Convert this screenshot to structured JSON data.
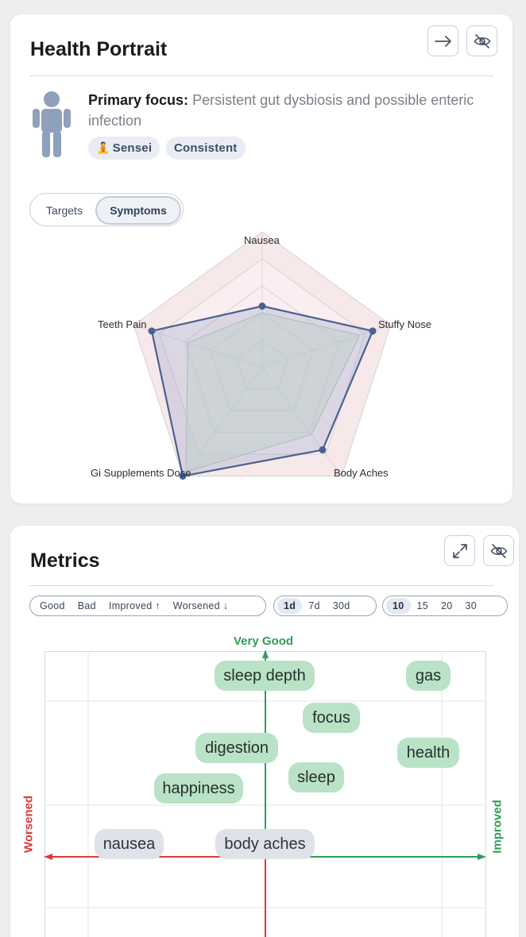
{
  "health_portrait": {
    "title": "Health Portrait",
    "buttons": {
      "open_icon": "arrow-right-icon",
      "hide_icon": "eye-off-icon"
    },
    "primary_focus_label": "Primary focus:",
    "primary_focus_text": "Persistent gut dysbiosis and possible enteric infection",
    "badges": [
      {
        "emoji": "🧘",
        "label": "Sensei"
      },
      {
        "label": "Consistent"
      }
    ],
    "toggle": {
      "options": [
        "Targets",
        "Symptoms"
      ],
      "selected": "Symptoms"
    },
    "radar": {
      "axes": [
        "Nausea",
        "Stuffy Nose",
        "Body Aches",
        "Gi Supplements Dose",
        "Teeth Pain"
      ],
      "series_main": [
        0.45,
        0.86,
        0.76,
        1.0,
        0.86
      ],
      "series_secondary": [
        0.4,
        0.76,
        0.62,
        0.96,
        0.58
      ],
      "colors": {
        "main": "#4a6191",
        "secondary": "#d9e6d0",
        "outer_fill": "#f7e8ea"
      }
    }
  },
  "metrics": {
    "title": "Metrics",
    "buttons": {
      "expand_icon": "expand-icon",
      "hide_icon": "eye-off-icon"
    },
    "filters": [
      "Good",
      "Bad",
      "Improved ↑",
      "Worsened ↓"
    ],
    "periods": {
      "options": [
        "1d",
        "7d",
        "30d"
      ],
      "selected": "1d"
    },
    "counts": {
      "options": [
        "10",
        "15",
        "20",
        "30"
      ],
      "selected": "10"
    },
    "axis_labels": {
      "top": "Very Good",
      "left": "Worsened",
      "right": "Improved"
    },
    "colors": {
      "good": "#2f9e55",
      "bad": "#dd3a3a"
    },
    "items": [
      {
        "label": "sleep depth",
        "type": "good"
      },
      {
        "label": "gas",
        "type": "good"
      },
      {
        "label": "focus",
        "type": "good"
      },
      {
        "label": "digestion",
        "type": "good"
      },
      {
        "label": "health",
        "type": "good"
      },
      {
        "label": "sleep",
        "type": "good"
      },
      {
        "label": "happiness",
        "type": "good"
      },
      {
        "label": "nausea",
        "type": "neutral"
      },
      {
        "label": "body aches",
        "type": "neutral"
      }
    ]
  }
}
